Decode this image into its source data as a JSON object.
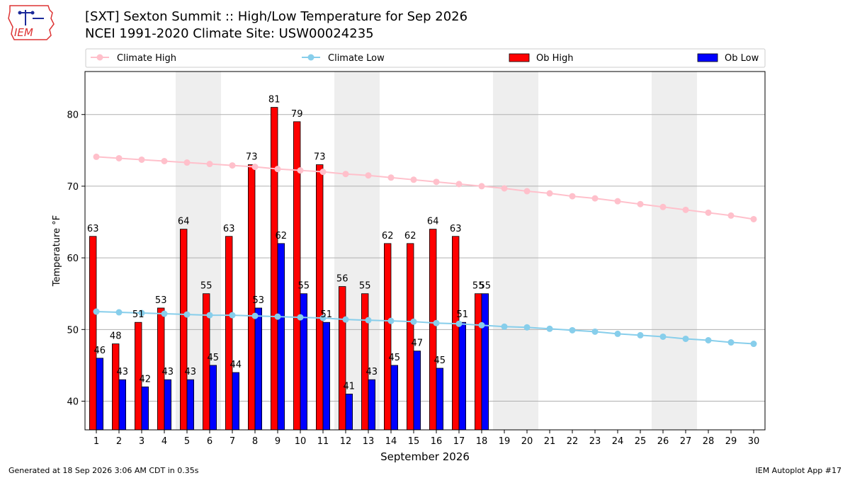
{
  "logo": {
    "text": "IEM",
    "icon": "iem-iowa-logo"
  },
  "header": {
    "title_line1": "[SXT] Sexton Summit :: High/Low Temperature for Sep 2026",
    "title_line2": "NCEI 1991-2020 Climate Site: USW00024235"
  },
  "footer": {
    "generated": "Generated at 18 Sep 2026 3:06 AM CDT in 0.35s",
    "app": "IEM Autoplot App #17"
  },
  "chart_data": {
    "type": "bar",
    "xlabel": "September 2026",
    "ylabel": "Temperature °F",
    "xlim": [
      0.5,
      30.5
    ],
    "ylim": [
      36,
      86
    ],
    "yticks": [
      40,
      50,
      60,
      70,
      80
    ],
    "grid": "horizontal",
    "legend_placement": "top",
    "weekend_shading": [
      [
        4.5,
        6.5
      ],
      [
        11.5,
        13.5
      ],
      [
        18.5,
        20.5
      ],
      [
        25.5,
        27.5
      ]
    ],
    "days": [
      1,
      2,
      3,
      4,
      5,
      6,
      7,
      8,
      9,
      10,
      11,
      12,
      13,
      14,
      15,
      16,
      17,
      18,
      19,
      20,
      21,
      22,
      23,
      24,
      25,
      26,
      27,
      28,
      29,
      30
    ],
    "series": [
      {
        "name": "Climate High",
        "kind": "line",
        "color": "#ffc0cb",
        "values": [
          74.1,
          73.9,
          73.7,
          73.5,
          73.3,
          73.1,
          72.9,
          72.7,
          72.4,
          72.2,
          72.0,
          71.7,
          71.5,
          71.2,
          70.9,
          70.6,
          70.3,
          70.0,
          69.7,
          69.3,
          69.0,
          68.6,
          68.3,
          67.9,
          67.5,
          67.1,
          66.7,
          66.3,
          65.9,
          65.4
        ]
      },
      {
        "name": "Climate Low",
        "kind": "line",
        "color": "#87ceeb",
        "values": [
          52.5,
          52.4,
          52.3,
          52.2,
          52.1,
          52.0,
          52.0,
          51.9,
          51.8,
          51.7,
          51.6,
          51.4,
          51.3,
          51.2,
          51.1,
          50.9,
          50.8,
          50.6,
          50.4,
          50.3,
          50.1,
          49.9,
          49.7,
          49.4,
          49.2,
          49.0,
          48.7,
          48.5,
          48.2,
          48.0
        ]
      },
      {
        "name": "Ob High",
        "kind": "bar",
        "color": "#ff0000",
        "values": [
          63,
          48,
          51,
          53,
          64,
          55,
          63,
          73,
          81,
          79,
          73,
          56,
          55,
          62,
          62,
          64,
          63,
          55
        ]
      },
      {
        "name": "Ob Low",
        "kind": "bar",
        "color": "#0000ff",
        "values": [
          46,
          43,
          42,
          43,
          43,
          45,
          44,
          53,
          62,
          55,
          51,
          41,
          43,
          45,
          47,
          44.6,
          51,
          55
        ],
        "labels": [
          "46",
          "43",
          "42",
          "43",
          "43",
          "45",
          "44",
          "53",
          "62",
          "55",
          "51",
          "41",
          "43",
          "45",
          "47",
          "45",
          "51",
          "55"
        ]
      }
    ]
  }
}
